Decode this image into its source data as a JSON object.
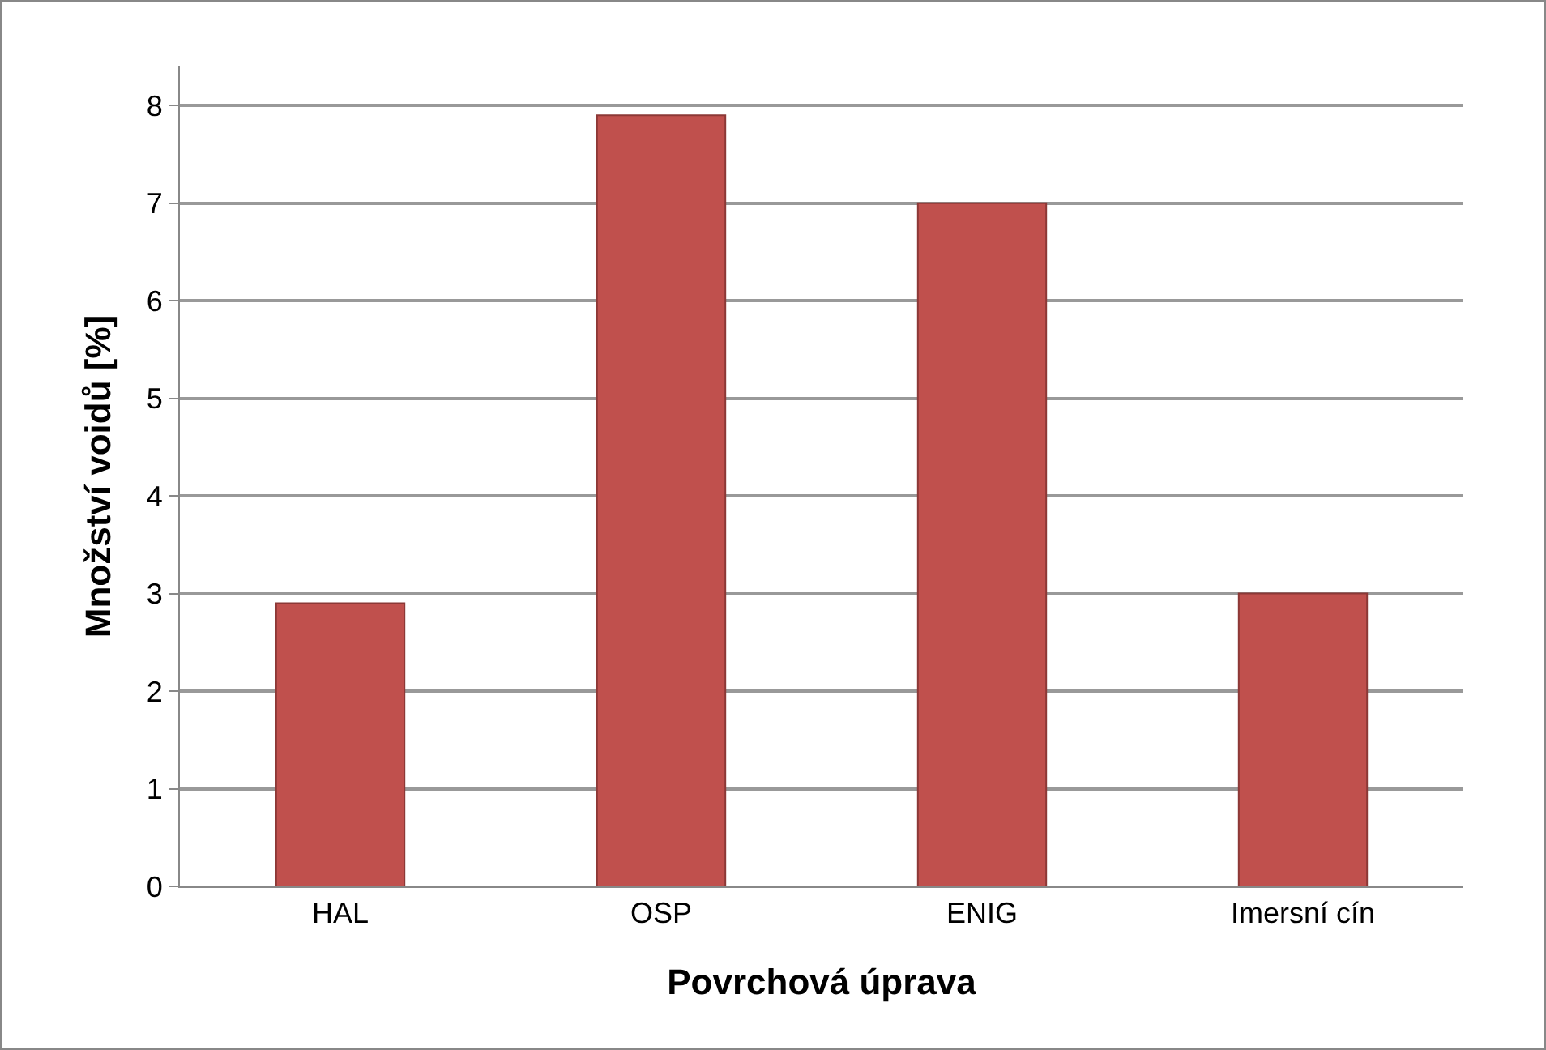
{
  "chart_data": {
    "type": "bar",
    "xlabel": "Povrchová úprava",
    "ylabel": "Množství voidů [%]",
    "categories": [
      "HAL",
      "OSP",
      "ENIG",
      "Imersní cín"
    ],
    "values": [
      2.9,
      7.9,
      7.0,
      3.0
    ],
    "color": "#c0504d",
    "ylim": [
      0,
      8.4
    ],
    "yticks": [
      0,
      1,
      2,
      3,
      4,
      5,
      6,
      7,
      8
    ],
    "grid": "y"
  }
}
